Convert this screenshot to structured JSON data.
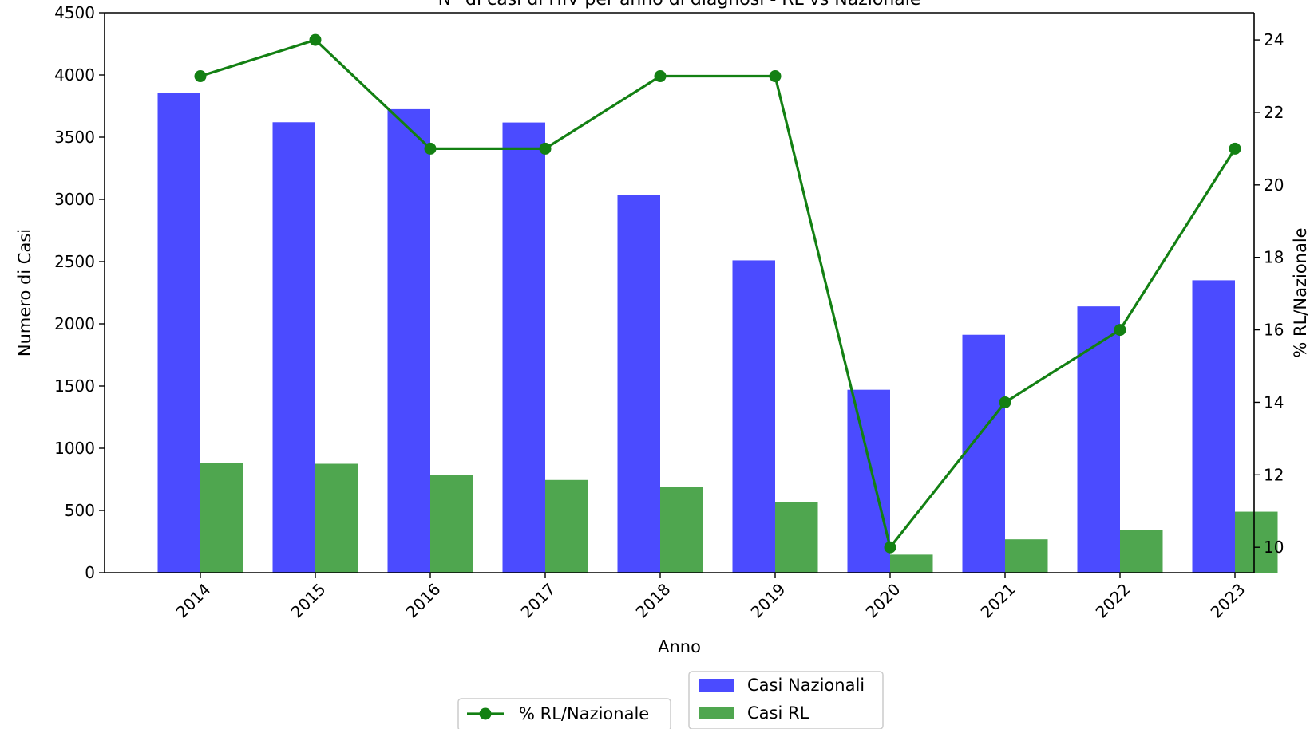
{
  "chart_data": {
    "type": "bar",
    "title": "N° di casi di HIV per anno di diagnosi - RL vs Nazionale",
    "xlabel": "Anno",
    "ylabel": "Numero di Casi",
    "y2label": "% RL/Nazionale",
    "categories": [
      "2014",
      "2015",
      "2016",
      "2017",
      "2018",
      "2019",
      "2020",
      "2021",
      "2022",
      "2023"
    ],
    "ylim": [
      0,
      4500
    ],
    "yticks": [
      0,
      500,
      1000,
      1500,
      2000,
      2500,
      3000,
      3500,
      4000,
      4500
    ],
    "y2lim": [
      9.3,
      24.75
    ],
    "y2ticks": [
      10,
      12,
      14,
      16,
      18,
      20,
      22,
      24
    ],
    "series": [
      {
        "name": "Casi Nazionali",
        "kind": "bar",
        "color": "#4b4bff",
        "values": [
          3855,
          3620,
          3725,
          3618,
          3035,
          2510,
          1470,
          1912,
          2140,
          2350
        ]
      },
      {
        "name": "Casi RL",
        "kind": "bar",
        "color": "#4fa64f",
        "values": [
          882,
          875,
          782,
          745,
          690,
          567,
          145,
          268,
          342,
          490
        ]
      },
      {
        "name": "% RL/Nazionale",
        "kind": "line",
        "axis": "right",
        "color": "#138013",
        "values": [
          23,
          24,
          21,
          21,
          23,
          23,
          10,
          14,
          16,
          21
        ]
      }
    ],
    "grid": false,
    "legend": {
      "bars_position": "bottom-right",
      "line_position": "bottom-left"
    }
  }
}
